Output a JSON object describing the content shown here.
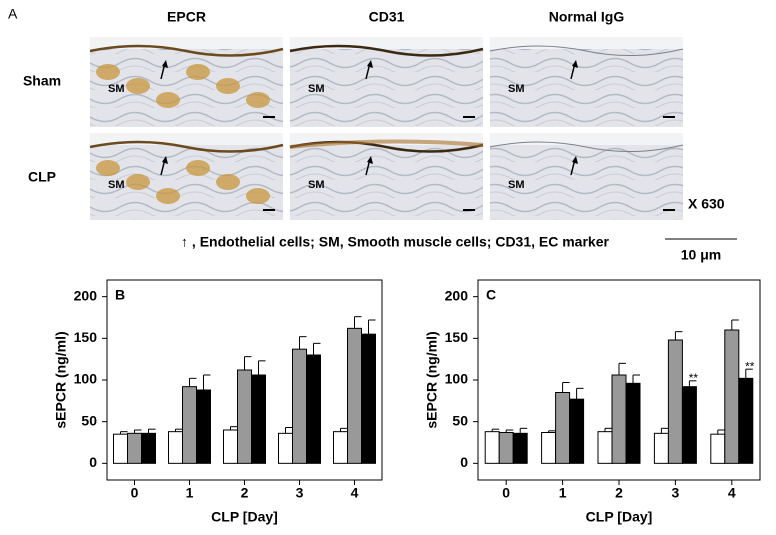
{
  "panel_a": {
    "label": "A",
    "columns": [
      "EPCR",
      "CD31",
      "Normal IgG"
    ],
    "rows": [
      {
        "label": "Sham",
        "images": [
          "SM",
          "SM",
          "SM"
        ]
      },
      {
        "label": "CLP",
        "images": [
          "SM",
          "SM",
          "SM"
        ]
      }
    ],
    "magnification": "X 630",
    "legend": "↑ , Endothelial cells; SM, Smooth muscle cells; CD31, EC marker",
    "scale_bar": "10 μm"
  },
  "chart_data": [
    {
      "type": "bar",
      "title": "B",
      "y_label": "sEPCR (ng/ml)",
      "x_label": "CLP [Day]",
      "categories": [
        "0",
        "1",
        "2",
        "3",
        "4"
      ],
      "ylim": [
        -20,
        220
      ],
      "yticks": [
        0,
        50,
        100,
        150,
        200
      ],
      "series": [
        {
          "color": "#ffffff",
          "values": [
            35,
            38,
            40,
            36,
            38
          ],
          "errors": [
            3,
            3,
            4,
            7,
            4
          ]
        },
        {
          "color": "#999999",
          "values": [
            36,
            92,
            112,
            137,
            162
          ],
          "errors": [
            4,
            10,
            16,
            15,
            14
          ]
        },
        {
          "color": "#000000",
          "values": [
            36,
            88,
            106,
            130,
            155
          ],
          "errors": [
            5,
            18,
            17,
            14,
            17
          ]
        }
      ]
    },
    {
      "type": "bar",
      "title": "C",
      "y_label": "sEPCR (ng/ml)",
      "x_label": "CLP [Day]",
      "categories": [
        "0",
        "1",
        "2",
        "3",
        "4"
      ],
      "ylim": [
        -20,
        220
      ],
      "yticks": [
        0,
        50,
        100,
        150,
        200
      ],
      "series": [
        {
          "color": "#ffffff",
          "values": [
            38,
            37,
            38,
            36,
            35
          ],
          "errors": [
            3,
            2,
            4,
            6,
            5
          ]
        },
        {
          "color": "#999999",
          "values": [
            37,
            85,
            106,
            148,
            160
          ],
          "errors": [
            3,
            12,
            14,
            10,
            12
          ]
        },
        {
          "color": "#000000",
          "values": [
            36,
            77,
            96,
            92,
            102
          ],
          "errors": [
            6,
            13,
            10,
            7,
            11
          ],
          "marks": [
            null,
            null,
            null,
            "**",
            "**"
          ]
        }
      ]
    }
  ]
}
